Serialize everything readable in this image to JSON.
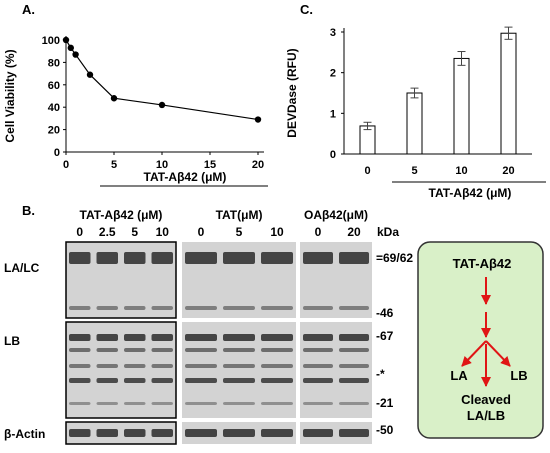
{
  "colors": {
    "ink": "#000000",
    "panel_bg": "#d9f0c8",
    "panel_border": "#333333",
    "arrow": "#e01515",
    "blot_bg": "#d3d3d3"
  },
  "panel_labels": {
    "a": "A.",
    "b": "B.",
    "c": "C."
  },
  "chart_data": [
    {
      "type": "line",
      "panel": "A",
      "title": "",
      "xlabel": "TAT-Aβ42 (μM)",
      "ylabel": "Cell Viability (%)",
      "xlim": [
        0,
        20
      ],
      "ylim": [
        0,
        100
      ],
      "xticks": [
        "0",
        "5",
        "10",
        "15",
        "20"
      ],
      "yticks": [
        "0",
        "20",
        "40",
        "60",
        "80",
        "100"
      ],
      "x": [
        0,
        0.5,
        1,
        2.5,
        5,
        10,
        20
      ],
      "y": [
        100,
        93,
        87,
        69,
        48,
        42,
        29
      ]
    },
    {
      "type": "bar",
      "panel": "C",
      "title": "",
      "xlabel": "TAT-Aβ42 (μM)",
      "ylabel": "DEVDase (RFU)",
      "ylim": [
        0,
        3
      ],
      "yticks": [
        "0",
        "1",
        "2",
        "3"
      ],
      "categories": [
        "0",
        "5",
        "10",
        "20"
      ],
      "values": [
        0.69,
        1.5,
        2.35,
        2.97
      ],
      "errors": [
        0.09,
        0.12,
        0.17,
        0.15
      ]
    }
  ],
  "blot": {
    "groups": [
      {
        "title": "TAT-Aβ42 (μM)",
        "lanes": [
          "0",
          "2.5",
          "5",
          "10"
        ]
      },
      {
        "title": "TAT(μM)",
        "lanes": [
          "0",
          "5",
          "10"
        ]
      },
      {
        "title": "OAβ42(μM)",
        "lanes": [
          "0",
          "20"
        ]
      }
    ],
    "kda_header": "kDa",
    "row_labels": [
      "LA/LC",
      "LB",
      "β-Actin"
    ],
    "markers": [
      "=69/62",
      "-46",
      "-67",
      "-*",
      "-21",
      "-50"
    ]
  },
  "schematic": {
    "top": "TAT-Aβ42",
    "left": "LA",
    "right": "LB",
    "bottom_line1": "Cleaved",
    "bottom_line2": "LA/LB"
  }
}
